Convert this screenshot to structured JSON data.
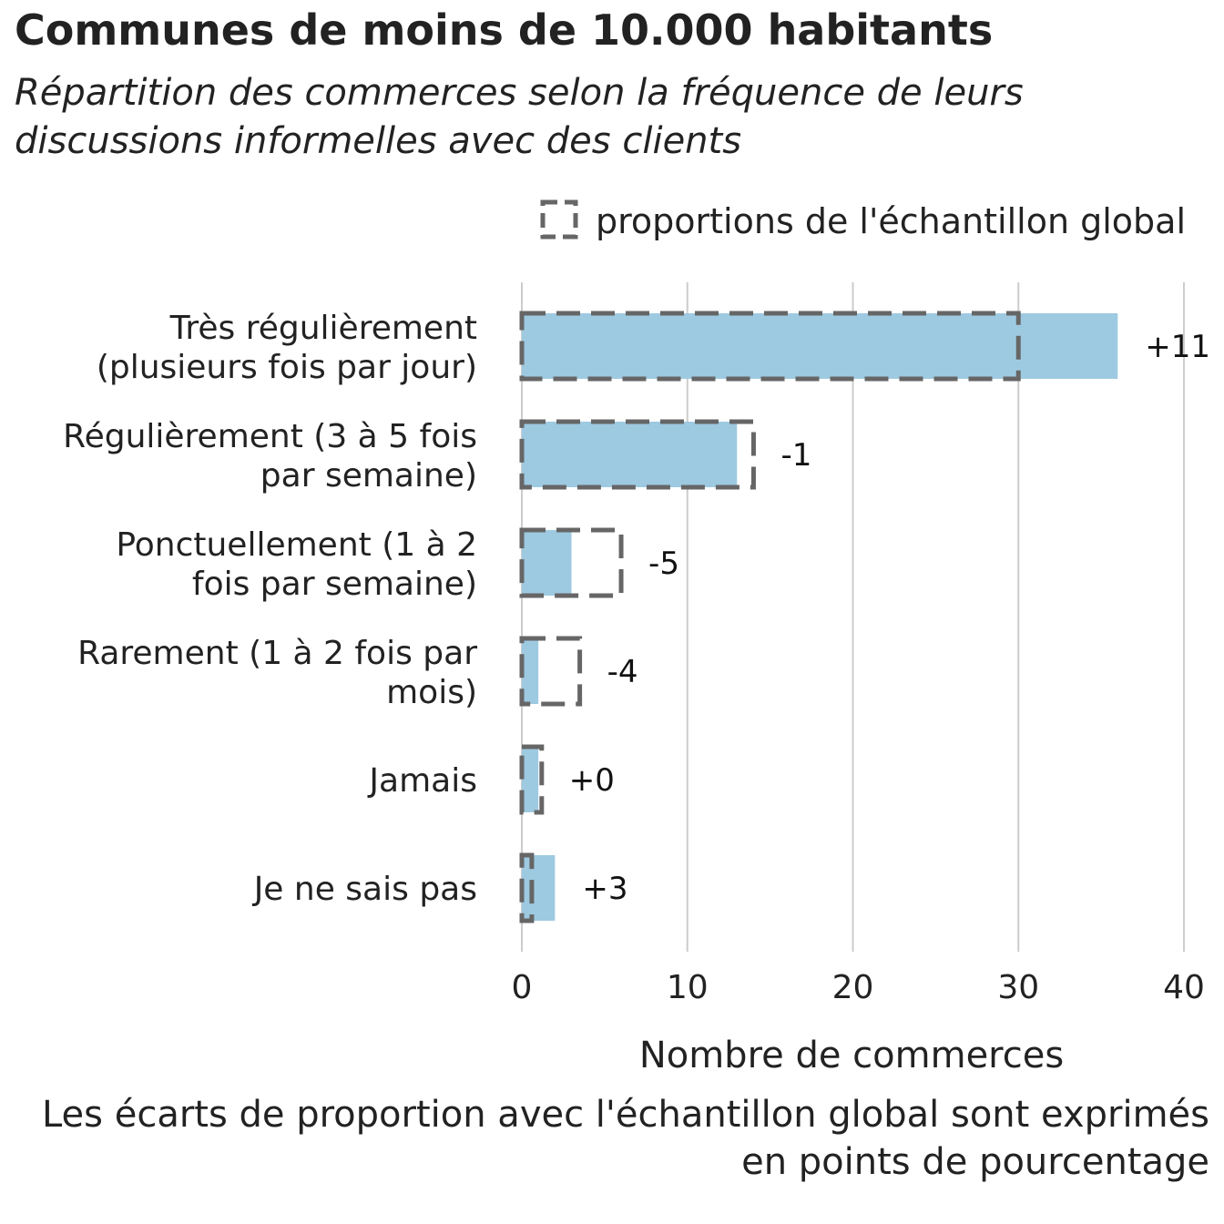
{
  "title": "Communes de moins de 10.000 habitants",
  "subtitle": "Répartition des commerces selon la fréquence de leurs discussions informelles avec des clients",
  "caption": "Les écarts de proportion avec l'échantillon global sont exprimés en points de pourcentage",
  "chart_data": {
    "type": "bar",
    "orientation": "horizontal",
    "categories": [
      "Très régulièrement (plusieurs fois par jour)",
      "Régulièrement (3 à 5 fois par semaine)",
      "Ponctuellement (1 à 2 fois par semaine)",
      "Rarement (1 à 2 fois par mois)",
      "Jamais",
      "Je ne sais pas"
    ],
    "series": [
      {
        "values": [
          36,
          13,
          3,
          1,
          1,
          2
        ],
        "color": "#9ecae1"
      },
      {
        "name": "proportions de l'échantillon global",
        "values": [
          30,
          14,
          6,
          3.5,
          1.2,
          0.6
        ],
        "style": "dashed-outline",
        "color": "#666666"
      }
    ],
    "annotations": [
      "+11",
      "-1",
      "-5",
      "-4",
      "+0",
      "+3"
    ],
    "xlabel": "Nombre de commerces",
    "xticks": [
      0,
      10,
      20,
      30,
      40
    ],
    "xlim": [
      0,
      40
    ],
    "grid": true,
    "legend": "top-right"
  }
}
